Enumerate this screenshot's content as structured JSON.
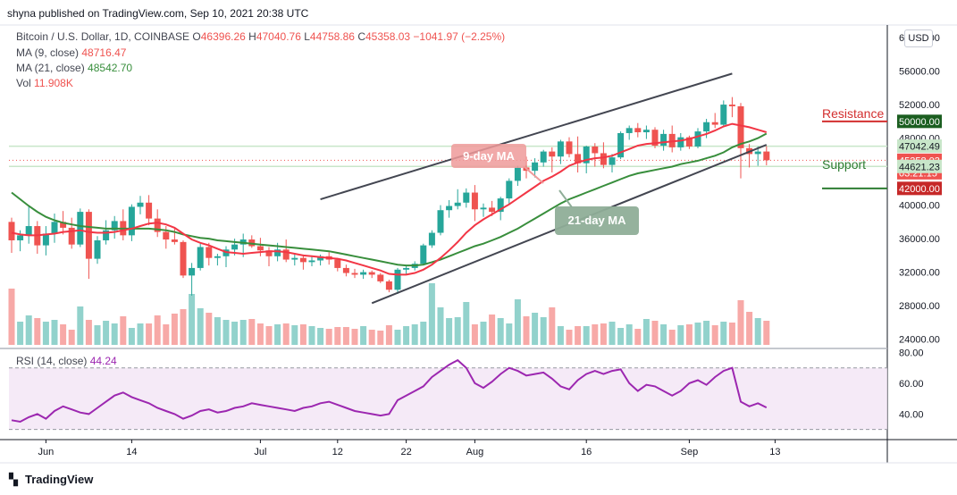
{
  "header": {
    "publisher_line": "shyna published on TradingView.com, Sep 10, 2021 20:38 UTC"
  },
  "legend": {
    "symbol": "Bitcoin / U.S. Dollar, 1D, COINBASE",
    "o_label": "O",
    "o_value": "46396.26",
    "h_label": "H",
    "h_value": "47040.76",
    "l_label": "L",
    "l_value": "44758.86",
    "c_label": "C",
    "c_value": "45358.03",
    "change": "−1041.97 (−2.25%)",
    "ma9_label": "MA (9, close)",
    "ma9_value": "48716.47",
    "ma21_label": "MA (21, close)",
    "ma21_value": "48542.70",
    "vol_label": "Vol",
    "vol_value": "11.908K",
    "rsi_label": "RSI (14, close)",
    "rsi_value": "44.24"
  },
  "currency_badge": "USD",
  "footer": {
    "brand": "TradingView"
  },
  "colors": {
    "up": "#26a69a",
    "down": "#ef5350",
    "ma9": "#f23645",
    "ma21": "#388e3c",
    "rsi": "#9c27b0",
    "resistance": "#d32f2f",
    "support": "#2e7d32"
  },
  "chart_data": {
    "type": "candlestick",
    "price_axis": {
      "ticks": [
        60000,
        56000,
        52000,
        48000,
        44000,
        40000,
        36000,
        32000,
        28000,
        24000
      ],
      "tick_labels": [
        "60000.00",
        "56000.00",
        "52000.00",
        "48000.00",
        "44000.00",
        "40000.00",
        "36000.00",
        "32000.00",
        "28000.00",
        "24000.00"
      ],
      "ylim": [
        23000,
        61500
      ]
    },
    "rsi_axis": {
      "ticks": [
        80,
        60,
        40
      ],
      "tick_labels": [
        "80.00",
        "60.00",
        "40.00"
      ],
      "band": [
        30,
        70
      ],
      "ylim": [
        24,
        82
      ]
    },
    "x_axis": {
      "tick_labels": [
        "Jun",
        "14",
        "Jul",
        "12",
        "22",
        "Aug",
        "16",
        "Sep",
        "13"
      ],
      "tick_index": [
        4,
        14,
        29,
        38,
        46,
        54,
        67,
        79,
        89
      ]
    },
    "price_labels": [
      {
        "text": "50000.00",
        "value": 50000,
        "kind": "resistance"
      },
      {
        "text": "47042.49",
        "value": 47042.49,
        "kind": "hline"
      },
      {
        "text": "45358.03",
        "value": 45358.03,
        "kind": "last"
      },
      {
        "text": "03:21:15",
        "value": 45358.03,
        "kind": "countdown"
      },
      {
        "text": "44621.23",
        "value": 44621.23,
        "kind": "hline"
      },
      {
        "text": "42000.00",
        "value": 42000,
        "kind": "support"
      }
    ],
    "annotations": {
      "resistance": "Resistance",
      "support": "Support",
      "ma9_callout": "9-day MA",
      "ma21_callout": "21-day MA"
    },
    "channel": {
      "upper": [
        [
          36,
          40700
        ],
        [
          84,
          55700
        ]
      ],
      "lower": [
        [
          42,
          28300
        ],
        [
          88,
          47200
        ]
      ]
    },
    "candles": [
      [
        38000,
        38500,
        34300,
        35800
      ],
      [
        35800,
        37000,
        34500,
        36400
      ],
      [
        36400,
        39800,
        35400,
        37500
      ],
      [
        37500,
        38100,
        34200,
        35200
      ],
      [
        35200,
        37500,
        34000,
        36600
      ],
      [
        36600,
        39000,
        35500,
        38000
      ],
      [
        38000,
        39300,
        36500,
        37300
      ],
      [
        37300,
        38500,
        34800,
        35300
      ],
      [
        35300,
        39600,
        35000,
        39200
      ],
      [
        39200,
        39500,
        31200,
        33600
      ],
      [
        33600,
        36300,
        33000,
        35800
      ],
      [
        35800,
        38200,
        35300,
        37000
      ],
      [
        37000,
        38700,
        36000,
        38100
      ],
      [
        38100,
        39500,
        35800,
        36400
      ],
      [
        36400,
        40100,
        35700,
        39800
      ],
      [
        39800,
        41100,
        38900,
        40300
      ],
      [
        40300,
        41200,
        37600,
        38400
      ],
      [
        38400,
        39500,
        36200,
        36800
      ],
      [
        36800,
        37500,
        34800,
        35900
      ],
      [
        35900,
        37200,
        35300,
        35600
      ],
      [
        35600,
        35800,
        31300,
        31600
      ],
      [
        31600,
        33100,
        29200,
        32500
      ],
      [
        32500,
        35400,
        32200,
        35000
      ],
      [
        35000,
        35500,
        32800,
        33700
      ],
      [
        33700,
        34200,
        32800,
        33900
      ],
      [
        33900,
        35100,
        32600,
        34700
      ],
      [
        34700,
        36000,
        34000,
        35300
      ],
      [
        35300,
        36600,
        33800,
        35900
      ],
      [
        35900,
        36400,
        34900,
        35100
      ],
      [
        35100,
        36100,
        33900,
        34600
      ],
      [
        34600,
        35000,
        32700,
        33900
      ],
      [
        33900,
        35500,
        33300,
        34700
      ],
      [
        34700,
        35900,
        33200,
        33500
      ],
      [
        33500,
        34300,
        32800,
        33700
      ],
      [
        33700,
        34100,
        32300,
        33200
      ],
      [
        33200,
        34000,
        32700,
        33400
      ],
      [
        33400,
        34100,
        32800,
        33900
      ],
      [
        33900,
        34400,
        32900,
        33500
      ],
      [
        33500,
        33700,
        32100,
        32500
      ],
      [
        32500,
        32900,
        31500,
        31900
      ],
      [
        31900,
        32400,
        31300,
        31700
      ],
      [
        31700,
        32300,
        31200,
        32000
      ],
      [
        32000,
        32200,
        31300,
        31700
      ],
      [
        31700,
        31900,
        30700,
        30900
      ],
      [
        30900,
        31100,
        29600,
        29900
      ],
      [
        29900,
        32500,
        29400,
        32300
      ],
      [
        32300,
        32800,
        31800,
        32500
      ],
      [
        32500,
        33300,
        32200,
        33000
      ],
      [
        33000,
        35400,
        32800,
        35200
      ],
      [
        35200,
        37000,
        34900,
        36700
      ],
      [
        36700,
        40000,
        36400,
        39400
      ],
      [
        39400,
        40600,
        38500,
        39900
      ],
      [
        39900,
        41900,
        39500,
        40300
      ],
      [
        40300,
        42000,
        39700,
        41500
      ],
      [
        41500,
        42400,
        38100,
        39500
      ],
      [
        39500,
        40200,
        38600,
        39700
      ],
      [
        39700,
        40500,
        38700,
        39200
      ],
      [
        39200,
        41000,
        38200,
        40800
      ],
      [
        40800,
        43200,
        40100,
        42900
      ],
      [
        42900,
        44700,
        42300,
        44500
      ],
      [
        44500,
        45800,
        43200,
        44100
      ],
      [
        44100,
        45600,
        43300,
        45100
      ],
      [
        45100,
        46600,
        44600,
        46400
      ],
      [
        46400,
        46900,
        43900,
        45800
      ],
      [
        45800,
        47800,
        44900,
        47600
      ],
      [
        47600,
        48100,
        45700,
        46100
      ],
      [
        46100,
        48200,
        43900,
        45000
      ],
      [
        45000,
        47100,
        43800,
        47000
      ],
      [
        47000,
        47400,
        44600,
        46200
      ],
      [
        46200,
        47500,
        44400,
        44800
      ],
      [
        44800,
        46100,
        43900,
        45700
      ],
      [
        45700,
        48800,
        45500,
        48600
      ],
      [
        48600,
        49500,
        47800,
        49200
      ],
      [
        49200,
        49800,
        48100,
        48700
      ],
      [
        48700,
        49500,
        47900,
        49000
      ],
      [
        49000,
        49300,
        46800,
        47100
      ],
      [
        47100,
        49000,
        46500,
        48500
      ],
      [
        48500,
        49500,
        46300,
        46900
      ],
      [
        46900,
        48600,
        46500,
        48100
      ],
      [
        48100,
        48300,
        46700,
        47000
      ],
      [
        47000,
        49200,
        46800,
        48800
      ],
      [
        48800,
        50300,
        48000,
        49900
      ],
      [
        49900,
        51000,
        49200,
        49600
      ],
      [
        49600,
        52500,
        49400,
        52000
      ],
      [
        52000,
        52900,
        50500,
        51800
      ],
      [
        51800,
        52200,
        43200,
        46800
      ],
      [
        46800,
        47300,
        44500,
        46100
      ],
      [
        46100,
        47000,
        44700,
        46400
      ],
      [
        46400,
        47040.76,
        44758.86,
        45358.03
      ]
    ],
    "volume_heights": [
      0.63,
      0.26,
      0.33,
      0.3,
      0.26,
      0.28,
      0.23,
      0.17,
      0.43,
      0.28,
      0.22,
      0.27,
      0.24,
      0.32,
      0.19,
      0.24,
      0.24,
      0.33,
      0.23,
      0.35,
      0.4,
      0.57,
      0.41,
      0.36,
      0.31,
      0.28,
      0.26,
      0.28,
      0.29,
      0.24,
      0.21,
      0.23,
      0.24,
      0.22,
      0.23,
      0.21,
      0.19,
      0.18,
      0.2,
      0.2,
      0.18,
      0.21,
      0.17,
      0.16,
      0.22,
      0.17,
      0.21,
      0.23,
      0.26,
      0.69,
      0.42,
      0.3,
      0.31,
      0.48,
      0.23,
      0.26,
      0.34,
      0.3,
      0.24,
      0.51,
      0.32,
      0.36,
      0.31,
      0.42,
      0.21,
      0.17,
      0.21,
      0.21,
      0.23,
      0.24,
      0.26,
      0.19,
      0.23,
      0.18,
      0.29,
      0.27,
      0.23,
      0.17,
      0.22,
      0.23,
      0.25,
      0.27,
      0.22,
      0.26,
      0.25,
      0.5,
      0.37,
      0.3,
      0.27
    ],
    "ma9": [
      36700,
      36500,
      36400,
      36400,
      36500,
      36600,
      36800,
      36900,
      37000,
      36800,
      36700,
      36700,
      36800,
      37000,
      37200,
      37500,
      37800,
      37900,
      37700,
      37300,
      36600,
      35900,
      35500,
      35200,
      34800,
      34400,
      34300,
      34200,
      34300,
      34400,
      34500,
      34500,
      34400,
      34200,
      34000,
      33900,
      33800,
      33700,
      33600,
      33400,
      33100,
      32800,
      32500,
      32200,
      31800,
      31700,
      31700,
      31900,
      32300,
      32900,
      33700,
      34600,
      35600,
      36700,
      37600,
      38300,
      38900,
      39500,
      40100,
      40800,
      41500,
      42200,
      42900,
      43400,
      44000,
      44700,
      45100,
      45400,
      45600,
      45700,
      45900,
      46300,
      46700,
      47100,
      47300,
      47400,
      47500,
      47600,
      47700,
      47900,
      48200,
      48500,
      48900,
      49400,
      49700,
      49500,
      49300,
      49000,
      48700
    ],
    "ma21": [
      41500,
      40700,
      39900,
      39200,
      38600,
      38200,
      37900,
      37700,
      37500,
      37400,
      37300,
      37200,
      37200,
      37200,
      37200,
      37200,
      37200,
      37100,
      37000,
      36800,
      36500,
      36300,
      36100,
      36000,
      35800,
      35700,
      35600,
      35500,
      35400,
      35300,
      35200,
      35100,
      35000,
      34900,
      34800,
      34700,
      34600,
      34500,
      34300,
      34100,
      33900,
      33700,
      33500,
      33300,
      33100,
      32900,
      32800,
      32800,
      32900,
      33200,
      33500,
      33900,
      34300,
      34700,
      35100,
      35400,
      35800,
      36200,
      36700,
      37200,
      37800,
      38400,
      39000,
      39600,
      40200,
      40700,
      41100,
      41500,
      41900,
      42300,
      42700,
      43100,
      43500,
      43800,
      44000,
      44200,
      44400,
      44600,
      44900,
      45100,
      45300,
      45600,
      45900,
      46300,
      46900,
      47300,
      47600,
      48000,
      48542.7
    ],
    "rsi": [
      36,
      35,
      38,
      40,
      37,
      42,
      45,
      43,
      41,
      40,
      44,
      48,
      52,
      54,
      51,
      49,
      47,
      44,
      42,
      40,
      37,
      39,
      42,
      43,
      41,
      42,
      44,
      45,
      47,
      46,
      45,
      44,
      43,
      42,
      44,
      45,
      47,
      48,
      46,
      44,
      42,
      41,
      40,
      39,
      40,
      49,
      52,
      55,
      58,
      64,
      68,
      72,
      75,
      70,
      60,
      57,
      61,
      66,
      70,
      68,
      65,
      66,
      67,
      63,
      58,
      56,
      62,
      66,
      68,
      66,
      68,
      69,
      60,
      55,
      59,
      58,
      55,
      52,
      55,
      60,
      62,
      59,
      64,
      68,
      70,
      48,
      45,
      47,
      44.24
    ]
  }
}
